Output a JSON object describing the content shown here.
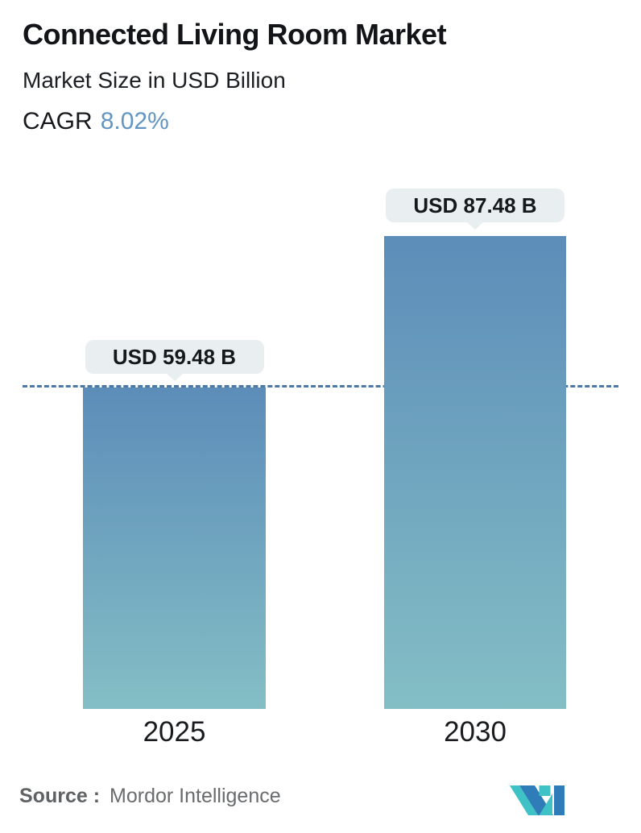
{
  "header": {
    "title": "Connected Living Room Market",
    "subtitle": "Market Size in USD Billion",
    "cagr_label": "CAGR",
    "cagr_value": "8.02%"
  },
  "chart_data": {
    "type": "bar",
    "categories": [
      "2025",
      "2030"
    ],
    "values": [
      59.48,
      87.48
    ],
    "bar_labels": [
      "USD 59.48 B",
      "USD 87.48 B"
    ],
    "title": "Connected Living Room Market",
    "subtitle": "Market Size in USD Billion",
    "unit": "USD Billion",
    "ylim": [
      0,
      87.48
    ],
    "grid": false,
    "legend": false,
    "dashed_reference_line_value": 59.48,
    "colors": {
      "bar_gradient_top": "#5c8db9",
      "bar_gradient_bottom": "#84bec5",
      "dashed_line": "#4a79a7",
      "label_pill_bg": "#e9eef0",
      "cagr_accent": "#6395c1"
    }
  },
  "footer": {
    "source_label": "Source :",
    "source_value": "Mordor Intelligence",
    "logo": "mordor-intelligence-logo",
    "logo_colors": {
      "blue": "#2e7cb8",
      "teal": "#3fc2c5"
    }
  }
}
